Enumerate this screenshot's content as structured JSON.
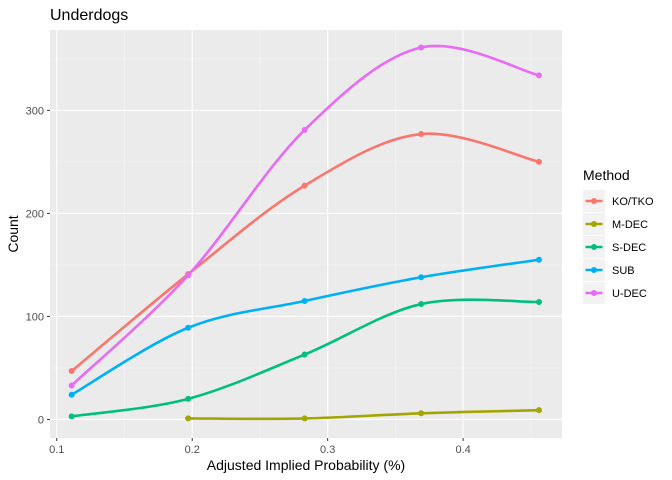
{
  "chart_data": {
    "type": "line",
    "title": "Underdogs",
    "xlabel": "Adjusted Implied Probability (%)",
    "ylabel": "Count",
    "xlim": [
      0.095,
      0.473
    ],
    "ylim": [
      -18,
      378
    ],
    "xticks": [
      0.1,
      0.2,
      0.3,
      0.4
    ],
    "xtick_labels": [
      "0.1",
      "0.2",
      "0.3",
      "0.4"
    ],
    "yticks": [
      0,
      100,
      200,
      300
    ],
    "ytick_labels": [
      "0",
      "100",
      "200",
      "300"
    ],
    "grid": true,
    "legend": {
      "title": "Method",
      "position": "right"
    },
    "series": [
      {
        "name": "KO/TKO",
        "color": "#F8766D",
        "points": [
          [
            0.111,
            47
          ],
          [
            0.197,
            141
          ],
          [
            0.283,
            227
          ],
          [
            0.369,
            277
          ],
          [
            0.456,
            250
          ]
        ]
      },
      {
        "name": "M-DEC",
        "color": "#A3A500",
        "points": [
          [
            0.197,
            1
          ],
          [
            0.283,
            1
          ],
          [
            0.369,
            6
          ],
          [
            0.456,
            9
          ]
        ]
      },
      {
        "name": "S-DEC",
        "color": "#00BF7D",
        "points": [
          [
            0.111,
            3
          ],
          [
            0.197,
            20
          ],
          [
            0.283,
            63
          ],
          [
            0.369,
            112
          ],
          [
            0.456,
            114
          ]
        ]
      },
      {
        "name": "SUB",
        "color": "#00B0F6",
        "points": [
          [
            0.111,
            24
          ],
          [
            0.197,
            89
          ],
          [
            0.283,
            115
          ],
          [
            0.369,
            138
          ],
          [
            0.456,
            155
          ]
        ]
      },
      {
        "name": "U-DEC",
        "color": "#E76BF3",
        "points": [
          [
            0.111,
            33
          ],
          [
            0.197,
            140
          ],
          [
            0.283,
            281
          ],
          [
            0.369,
            361
          ],
          [
            0.456,
            334
          ]
        ]
      }
    ]
  }
}
